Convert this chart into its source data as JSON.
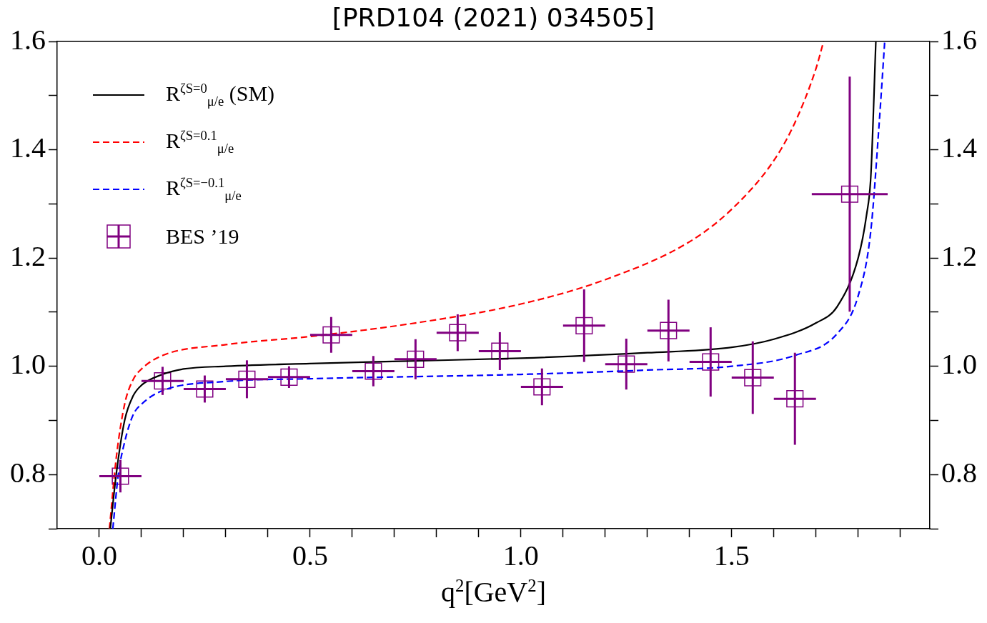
{
  "chart_data": {
    "type": "line",
    "title": "[PRD104 (2021) 034505]",
    "xlabel": "q$^{2}$[GeV$^{2}$]",
    "xlim": [
      -0.1,
      1.97
    ],
    "xticks": [
      {
        "value": 0,
        "label": "0.0"
      },
      {
        "value": 0.1,
        "label": null
      },
      {
        "value": 0.2,
        "label": null
      },
      {
        "value": 0.3,
        "label": null
      },
      {
        "value": 0.4,
        "label": null
      },
      {
        "value": 0.5,
        "label": "0.5"
      },
      {
        "value": 0.6,
        "label": null
      },
      {
        "value": 0.7,
        "label": null
      },
      {
        "value": 0.8,
        "label": null
      },
      {
        "value": 0.9,
        "label": null
      },
      {
        "value": 1.0,
        "label": "1.0"
      },
      {
        "value": 1.1,
        "label": null
      },
      {
        "value": 1.2,
        "label": null
      },
      {
        "value": 1.3,
        "label": null
      },
      {
        "value": 1.4,
        "label": null
      },
      {
        "value": 1.5,
        "label": "1.5"
      },
      {
        "value": 1.6,
        "label": null
      },
      {
        "value": 1.7,
        "label": null
      },
      {
        "value": 1.8,
        "label": null
      },
      {
        "value": 1.9,
        "label": null
      }
    ],
    "ylim": [
      0.7,
      1.6
    ],
    "yticks": [
      {
        "value": 0.7,
        "label": null
      },
      {
        "value": 0.8,
        "label": "0.8"
      },
      {
        "value": 0.9,
        "label": null
      },
      {
        "value": 1.0,
        "label": "1.0"
      },
      {
        "value": 1.1,
        "label": null
      },
      {
        "value": 1.2,
        "label": "1.2"
      },
      {
        "value": 1.3,
        "label": null
      },
      {
        "value": 1.4,
        "label": "1.4"
      },
      {
        "value": 1.5,
        "label": null
      },
      {
        "value": 1.6,
        "label": "1.6"
      }
    ],
    "y2lim": [
      0.7,
      1.6
    ],
    "y2ticks": [
      {
        "value": 0.7,
        "label": null
      },
      {
        "value": 0.8,
        "label": "0.8"
      },
      {
        "value": 0.9,
        "label": null
      },
      {
        "value": 1.0,
        "label": "1.0"
      },
      {
        "value": 1.1,
        "label": null
      },
      {
        "value": 1.2,
        "label": "1.2"
      },
      {
        "value": 1.3,
        "label": null
      },
      {
        "value": 1.4,
        "label": "1.4"
      },
      {
        "value": 1.5,
        "label": null
      },
      {
        "value": 1.6,
        "label": "1.6"
      }
    ],
    "grid": false,
    "legend": "top left",
    "series": [
      {
        "name": "R$^{ζS=0}$$_{μ/e}$ (SM)",
        "type": "line",
        "color": "#000000",
        "line_style": "solid",
        "marker": "none",
        "x": [
          0.026,
          0.04,
          0.06,
          0.08,
          0.1,
          0.15,
          0.2,
          0.3,
          0.5,
          0.75,
          1.0,
          1.3,
          1.5,
          1.6,
          1.7,
          1.75,
          1.8,
          1.82,
          1.83,
          1.842
        ],
        "values": [
          0.7,
          0.8,
          0.9,
          0.945,
          0.965,
          0.985,
          0.995,
          1.0,
          1.005,
          1.01,
          1.015,
          1.025,
          1.035,
          1.05,
          1.08,
          1.11,
          1.2,
          1.28,
          1.35,
          1.6
        ]
      },
      {
        "name": "R$^{ζS=0.1}$$_{μ/e}$",
        "type": "line",
        "color": "#ff0000",
        "line_style": "dashed",
        "marker": "none",
        "x": [
          0.024,
          0.04,
          0.06,
          0.08,
          0.1,
          0.15,
          0.3,
          0.5,
          0.75,
          1.0,
          1.2,
          1.4,
          1.5,
          1.6,
          1.65,
          1.7,
          1.718
        ],
        "values": [
          0.7,
          0.83,
          0.93,
          0.975,
          0.995,
          1.02,
          1.04,
          1.055,
          1.08,
          1.115,
          1.16,
          1.23,
          1.29,
          1.38,
          1.45,
          1.55,
          1.6
        ]
      },
      {
        "name": "R$^{ζS=−0.1}$$_{μ/e}$",
        "type": "line",
        "color": "#0000ff",
        "line_style": "dashed",
        "marker": "none",
        "x": [
          0.032,
          0.045,
          0.06,
          0.08,
          0.1,
          0.15,
          0.3,
          0.5,
          1.0,
          1.3,
          1.5,
          1.65,
          1.75,
          1.8,
          1.83,
          1.85,
          1.863
        ],
        "values": [
          0.7,
          0.8,
          0.86,
          0.91,
          0.93,
          0.955,
          0.972,
          0.977,
          0.985,
          0.993,
          1.0,
          1.02,
          1.06,
          1.13,
          1.25,
          1.45,
          1.6
        ]
      },
      {
        "name": "BES ’19",
        "type": "scatter",
        "color": "#800080",
        "marker": "square",
        "x": [
          0.05,
          0.15,
          0.25,
          0.35,
          0.45,
          0.55,
          0.65,
          0.75,
          0.85,
          0.95,
          1.05,
          1.15,
          1.25,
          1.35,
          1.45,
          1.55,
          1.65,
          1.78
        ],
        "values": [
          0.797,
          0.973,
          0.958,
          0.976,
          0.98,
          1.058,
          0.991,
          1.013,
          1.062,
          1.028,
          0.962,
          1.075,
          1.004,
          1.066,
          1.008,
          0.979,
          0.94,
          1.318
        ],
        "errors": [
          0.03,
          0.026,
          0.025,
          0.035,
          0.02,
          0.033,
          0.028,
          0.037,
          0.034,
          0.035,
          0.034,
          0.067,
          0.047,
          0.057,
          0.064,
          0.067,
          0.085,
          0.217
        ],
        "xerrors": [
          0.05,
          0.05,
          0.05,
          0.05,
          0.05,
          0.05,
          0.05,
          0.05,
          0.05,
          0.05,
          0.05,
          0.05,
          0.05,
          0.05,
          0.05,
          0.05,
          0.05,
          0.09
        ]
      }
    ]
  }
}
